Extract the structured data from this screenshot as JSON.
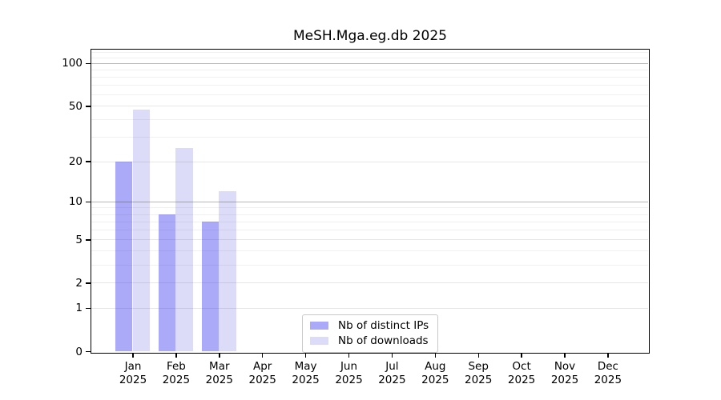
{
  "title": "MeSH.Mga.eg.db 2025",
  "chart_data": {
    "type": "bar",
    "title": "MeSH.Mga.eg.db 2025",
    "categories": [
      "Jan 2025",
      "Feb 2025",
      "Mar 2025",
      "Apr 2025",
      "May 2025",
      "Jun 2025",
      "Jul 2025",
      "Aug 2025",
      "Sep 2025",
      "Oct 2025",
      "Nov 2025",
      "Dec 2025"
    ],
    "series": [
      {
        "name": "Nb of distinct IPs",
        "color": "#aaaaf8",
        "values": [
          20,
          8,
          7,
          0,
          0,
          0,
          0,
          0,
          0,
          0,
          0,
          0
        ]
      },
      {
        "name": "Nb of downloads",
        "color": "#dcdcf8",
        "values": [
          47,
          25,
          12,
          0,
          0,
          0,
          0,
          0,
          0,
          0,
          0,
          0
        ]
      }
    ],
    "xlabel": "",
    "ylabel": "",
    "yscale": "log1p",
    "ylim": [
      0,
      124.5
    ],
    "yticks": [
      0,
      1,
      2,
      5,
      10,
      20,
      50,
      100
    ],
    "strong_gridlines": [
      10,
      100
    ],
    "minor_gridlines": [
      3,
      4,
      6,
      7,
      8,
      9,
      30,
      40,
      60,
      70,
      80,
      90,
      110,
      120
    ],
    "grid": true,
    "legend_position": "lower center"
  }
}
